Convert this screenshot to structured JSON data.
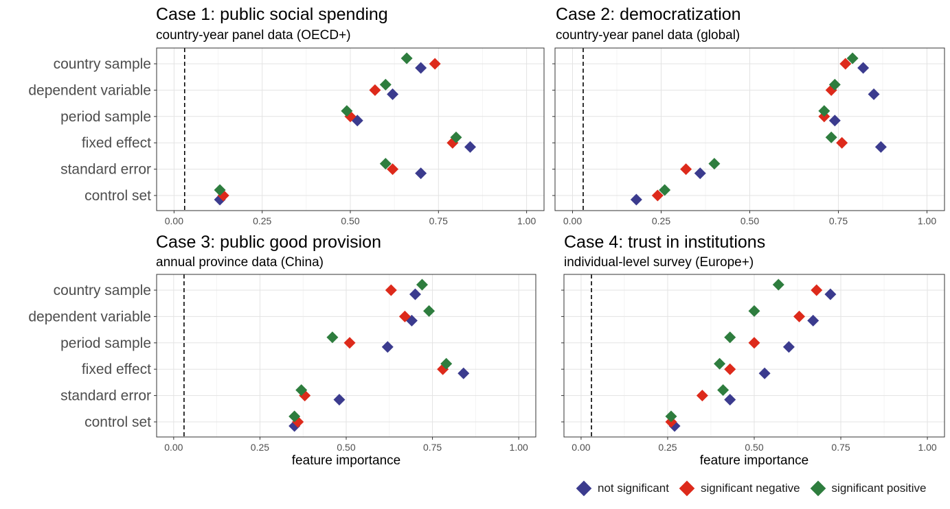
{
  "colors": {
    "not_significant": "#3b3b8e",
    "significant_negative": "#dd2a1b",
    "significant_positive": "#2e7d3e",
    "panel_border": "#333333",
    "grid": "#e6e6e6",
    "text": "#4d4d4d"
  },
  "chart_data": [
    {
      "type": "scatter",
      "title": "Case 1: public social spending",
      "subtitle": "country-year panel data (OECD+)",
      "xlabel": "",
      "xlim": [
        0,
        1
      ],
      "x_ticks": [
        "0.00",
        "0.25",
        "0.50",
        "0.75",
        "1.00"
      ],
      "reference_line_x": 0.03,
      "categories": [
        "country sample",
        "dependent variable",
        "period sample",
        "fixed effect",
        "standard error",
        "control set"
      ],
      "series": [
        {
          "name": "not significant",
          "values": [
            0.7,
            0.62,
            0.52,
            0.84,
            0.7,
            0.13
          ]
        },
        {
          "name": "significant negative",
          "values": [
            0.74,
            0.57,
            0.5,
            0.79,
            0.62,
            0.14
          ]
        },
        {
          "name": "significant positive",
          "values": [
            0.66,
            0.6,
            0.49,
            0.8,
            0.6,
            0.13
          ]
        }
      ]
    },
    {
      "type": "scatter",
      "title": "Case 2: democratization",
      "subtitle": "country-year panel data (global)",
      "xlabel": "",
      "xlim": [
        0,
        1
      ],
      "x_ticks": [
        "0.00",
        "0.25",
        "0.50",
        "0.75",
        "1.00"
      ],
      "reference_line_x": 0.03,
      "categories": [
        "country sample",
        "dependent variable",
        "period sample",
        "fixed effect",
        "standard error",
        "control set"
      ],
      "series": [
        {
          "name": "not significant",
          "values": [
            0.82,
            0.85,
            0.74,
            0.87,
            0.36,
            0.18
          ]
        },
        {
          "name": "significant negative",
          "values": [
            0.77,
            0.73,
            0.71,
            0.76,
            0.32,
            0.24
          ]
        },
        {
          "name": "significant positive",
          "values": [
            0.79,
            0.74,
            0.71,
            0.73,
            0.4,
            0.26
          ]
        }
      ]
    },
    {
      "type": "scatter",
      "title": "Case 3: public good provision",
      "subtitle": "annual province data (China)",
      "xlabel": "feature importance",
      "xlim": [
        0,
        1
      ],
      "x_ticks": [
        "0.00",
        "0.25",
        "0.50",
        "0.75",
        "1.00"
      ],
      "reference_line_x": 0.03,
      "categories": [
        "country sample",
        "dependent variable",
        "period sample",
        "fixed effect",
        "standard error",
        "control set"
      ],
      "series": [
        {
          "name": "not significant",
          "values": [
            0.7,
            0.69,
            0.62,
            0.84,
            0.48,
            0.35
          ]
        },
        {
          "name": "significant negative",
          "values": [
            0.63,
            0.67,
            0.51,
            0.78,
            0.38,
            0.36
          ]
        },
        {
          "name": "significant positive",
          "values": [
            0.72,
            0.74,
            0.46,
            0.79,
            0.37,
            0.35
          ]
        }
      ]
    },
    {
      "type": "scatter",
      "title": "Case 4: trust in institutions",
      "subtitle": "individual-level survey (Europe+)",
      "xlabel": "feature importance",
      "xlim": [
        0,
        1
      ],
      "x_ticks": [
        "0.00",
        "0.25",
        "0.50",
        "0.75",
        "1.00"
      ],
      "reference_line_x": 0.03,
      "categories": [
        "country sample",
        "dependent variable",
        "period sample",
        "fixed effect",
        "standard error",
        "control set"
      ],
      "series": [
        {
          "name": "not significant",
          "values": [
            0.72,
            0.67,
            0.6,
            0.53,
            0.43,
            0.27
          ]
        },
        {
          "name": "significant negative",
          "values": [
            0.68,
            0.63,
            0.5,
            0.43,
            0.35,
            0.26
          ]
        },
        {
          "name": "significant positive",
          "values": [
            0.57,
            0.5,
            0.43,
            0.4,
            0.41,
            0.26
          ]
        }
      ]
    }
  ],
  "legend": {
    "placement": "bottom-right",
    "items": [
      {
        "label": "not significant",
        "color": "#3b3b8e"
      },
      {
        "label": "significant negative",
        "color": "#dd2a1b"
      },
      {
        "label": "significant positive",
        "color": "#2e7d3e"
      }
    ]
  }
}
